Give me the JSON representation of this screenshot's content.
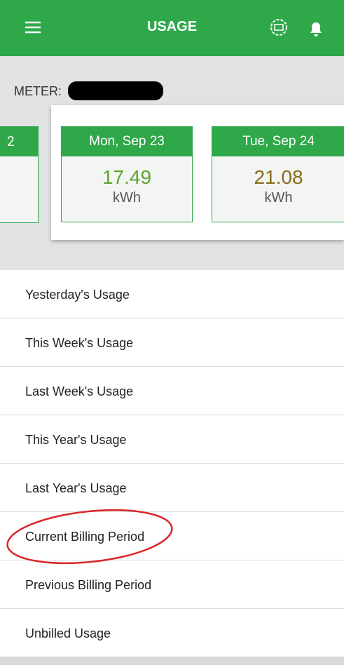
{
  "header": {
    "title": "USAGE"
  },
  "meter": {
    "label": "METER:"
  },
  "cards": [
    {
      "date": "2"
    },
    {
      "date": "Mon, Sep 23",
      "value": 17.49,
      "unit": "kWh"
    },
    {
      "date": "Tue, Sep 24",
      "value": 21.08,
      "unit": "kWh"
    }
  ],
  "menu": [
    "Yesterday's Usage",
    "This Week's Usage",
    "Last Week's Usage",
    "This Year's Usage",
    "Last Year's Usage",
    "Current Billing Period",
    "Previous Billing Period",
    "Unbilled Usage"
  ]
}
